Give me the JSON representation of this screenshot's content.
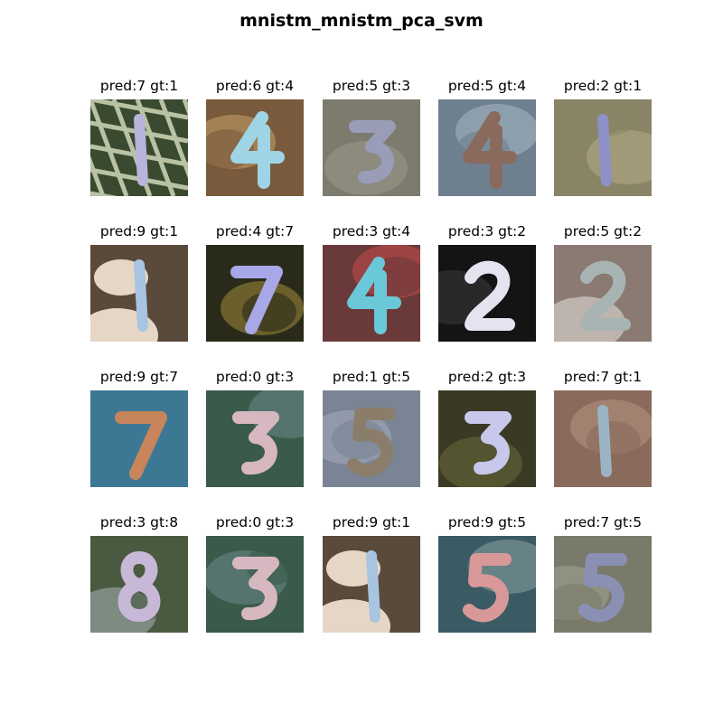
{
  "figure": {
    "title": "mnistm_mnistm_pca_svm"
  },
  "grid": [
    [
      {
        "pred": "7",
        "gt": "1",
        "label": "pred:7 gt:1",
        "bg": "#3a4a30",
        "bg2": "#b9c3a4",
        "fg": "#b8b4dc",
        "pattern": "grid"
      },
      {
        "pred": "6",
        "gt": "4",
        "label": "pred:6 gt:4",
        "bg": "#7a5a3c",
        "bg2": "#c7a36a",
        "fg": "#9fd3e6",
        "pattern": "rock"
      },
      {
        "pred": "5",
        "gt": "3",
        "label": "pred:5 gt:3",
        "bg": "#7d7a6e",
        "bg2": "#9b988c",
        "fg": "#9a9db8",
        "pattern": "blur"
      },
      {
        "pred": "5",
        "gt": "4",
        "label": "pred:5 gt:4",
        "bg": "#6e8090",
        "bg2": "#a8b8c4",
        "fg": "#8a6a5c",
        "pattern": "blur"
      },
      {
        "pred": "2",
        "gt": "1",
        "label": "pred:2 gt:1",
        "bg": "#8a8466",
        "bg2": "#b4ad86",
        "fg": "#8d91c8",
        "pattern": "blur"
      }
    ],
    [
      {
        "pred": "9",
        "gt": "1",
        "label": "pred:9 gt:1",
        "bg": "#5a4a3c",
        "bg2": "#e6d6c6",
        "fg": "#a8c4e0",
        "pattern": "person"
      },
      {
        "pred": "4",
        "gt": "7",
        "label": "pred:4 gt:7",
        "bg": "#2a2a1a",
        "bg2": "#a08a3a",
        "fg": "#a8a8e8",
        "pattern": "dark"
      },
      {
        "pred": "3",
        "gt": "4",
        "label": "pred:3 gt:4",
        "bg": "#6a3a3a",
        "bg2": "#c84a4a",
        "fg": "#6ac8d8",
        "pattern": "rock"
      },
      {
        "pred": "3",
        "gt": "2",
        "label": "pred:3 gt:2",
        "bg": "#141414",
        "bg2": "#3a3a3a",
        "fg": "#e4e4f0",
        "pattern": "dark"
      },
      {
        "pred": "5",
        "gt": "2",
        "label": "pred:5 gt:2",
        "bg": "#8a7a72",
        "bg2": "#e8e4e0",
        "fg": "#a8b4b4",
        "pattern": "blur"
      }
    ],
    [
      {
        "pred": "9",
        "gt": "7",
        "label": "pred:9 gt:7",
        "bg": "#3c7894",
        "bg2": "#3c7894",
        "fg": "#c8845a",
        "pattern": "flat"
      },
      {
        "pred": "0",
        "gt": "3",
        "label": "pred:0 gt:3",
        "bg": "#3a5a4a",
        "bg2": "#6a8a8a",
        "fg": "#d8b8c0",
        "pattern": "blur"
      },
      {
        "pred": "1",
        "gt": "5",
        "label": "pred:1 gt:5",
        "bg": "#7a8494",
        "bg2": "#a4acbc",
        "fg": "#8a7e6a",
        "pattern": "blur"
      },
      {
        "pred": "2",
        "gt": "3",
        "label": "pred:2 gt:3",
        "bg": "#3a3a24",
        "bg2": "#6a6a3a",
        "fg": "#c8c8ec",
        "pattern": "dark"
      },
      {
        "pred": "7",
        "gt": "1",
        "label": "pred:7 gt:1",
        "bg": "#8a6a5a",
        "bg2": "#b49484",
        "fg": "#9ab4c4",
        "pattern": "rock"
      }
    ],
    [
      {
        "pred": "3",
        "gt": "8",
        "label": "pred:3 gt:8",
        "bg": "#4a5a40",
        "bg2": "#a8b4b8",
        "fg": "#c8b8d8",
        "pattern": "blur"
      },
      {
        "pred": "0",
        "gt": "3",
        "label": "pred:0 gt:3",
        "bg": "#3a5a4a",
        "bg2": "#6a8a8a",
        "fg": "#d8b8c0",
        "pattern": "blur"
      },
      {
        "pred": "9",
        "gt": "1",
        "label": "pred:9 gt:1",
        "bg": "#5a4a3c",
        "bg2": "#e6d6c6",
        "fg": "#a8c4e0",
        "pattern": "person"
      },
      {
        "pred": "9",
        "gt": "5",
        "label": "pred:9 gt:5",
        "bg": "#3a5a64",
        "bg2": "#8aa4a4",
        "fg": "#d89898",
        "pattern": "rock"
      },
      {
        "pred": "7",
        "gt": "5",
        "label": "pred:7 gt:5",
        "bg": "#7a7a6a",
        "bg2": "#a4a494",
        "fg": "#8a90b4",
        "pattern": "blur"
      }
    ]
  ]
}
